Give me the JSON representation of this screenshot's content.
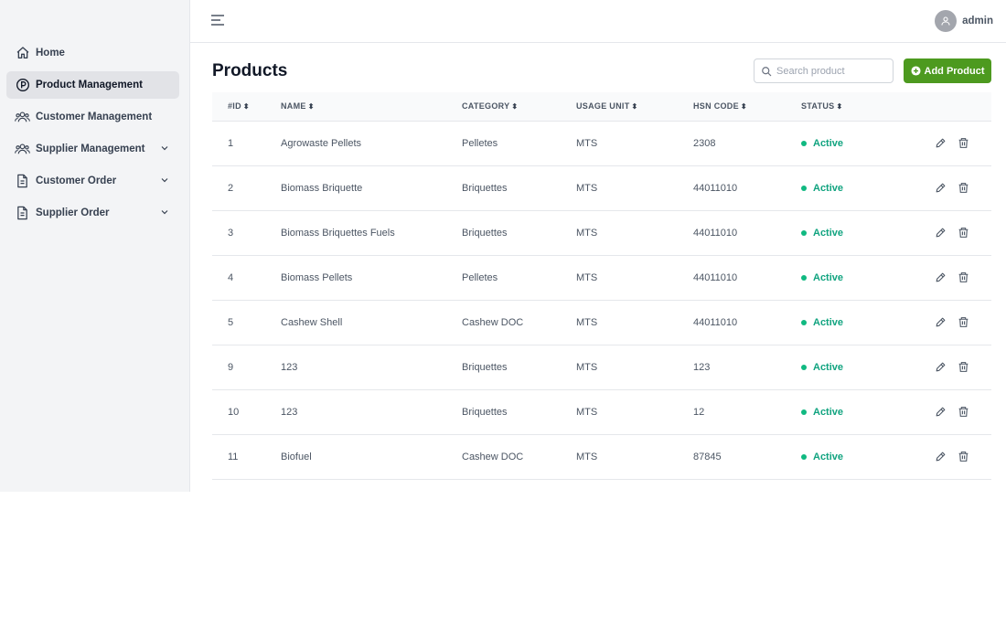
{
  "sidebar": {
    "items": [
      {
        "label": "Home",
        "icon": "home-icon",
        "active": false,
        "expandable": false
      },
      {
        "label": "Product Management",
        "icon": "product-icon",
        "active": true,
        "expandable": false
      },
      {
        "label": "Customer Management",
        "icon": "users-icon",
        "active": false,
        "expandable": false
      },
      {
        "label": "Supplier Management",
        "icon": "users-icon",
        "active": false,
        "expandable": true
      },
      {
        "label": "Customer Order",
        "icon": "document-icon",
        "active": false,
        "expandable": true
      },
      {
        "label": "Supplier Order",
        "icon": "document-icon",
        "active": false,
        "expandable": true
      }
    ]
  },
  "header": {
    "username": "admin"
  },
  "main": {
    "title": "Products",
    "search_placeholder": "Search product",
    "add_label": "Add Product",
    "accent_color": "#4d9a1f",
    "status_color": "#10b981"
  },
  "table": {
    "columns": [
      "#ID",
      "NAME",
      "CATEGORY",
      "USAGE UNIT",
      "HSN CODE",
      "STATUS"
    ],
    "rows": [
      {
        "id": "1",
        "name": "Agrowaste Pellets",
        "category": "Pelletes",
        "unit": "MTS",
        "hsn": "2308",
        "status": "Active"
      },
      {
        "id": "2",
        "name": "Biomass Briquette",
        "category": "Briquettes",
        "unit": "MTS",
        "hsn": "44011010",
        "status": "Active"
      },
      {
        "id": "3",
        "name": "Biomass Briquettes Fuels",
        "category": "Briquettes",
        "unit": "MTS",
        "hsn": "44011010",
        "status": "Active"
      },
      {
        "id": "4",
        "name": "Biomass Pellets",
        "category": "Pelletes",
        "unit": "MTS",
        "hsn": "44011010",
        "status": "Active"
      },
      {
        "id": "5",
        "name": "Cashew Shell",
        "category": "Cashew DOC",
        "unit": "MTS",
        "hsn": "44011010",
        "status": "Active"
      },
      {
        "id": "9",
        "name": "123",
        "category": "Briquettes",
        "unit": "MTS",
        "hsn": "123",
        "status": "Active"
      },
      {
        "id": "10",
        "name": "123",
        "category": "Briquettes",
        "unit": "MTS",
        "hsn": "12",
        "status": "Active"
      },
      {
        "id": "11",
        "name": "Biofuel",
        "category": "Cashew DOC",
        "unit": "MTS",
        "hsn": "87845",
        "status": "Active"
      }
    ]
  }
}
